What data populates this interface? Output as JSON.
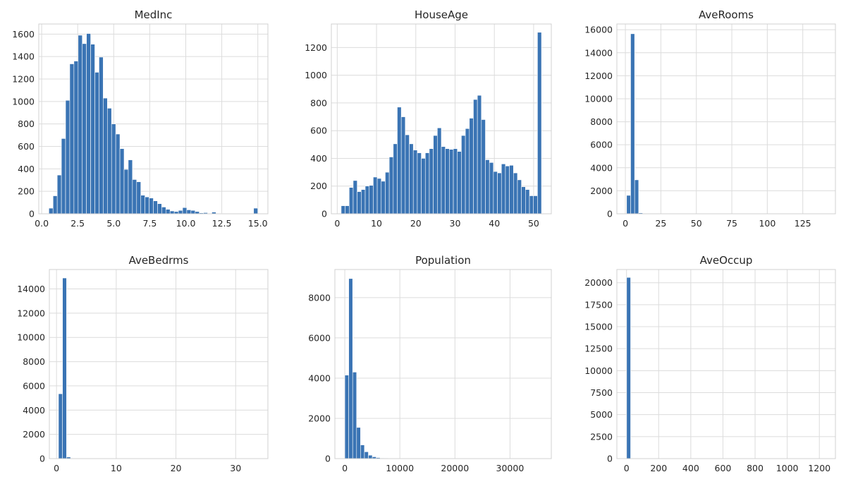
{
  "colors": {
    "bar": "#3a74b4",
    "grid": "#dcdcdc",
    "background": "#ffffff"
  },
  "chart_data": [
    {
      "type": "bar",
      "title": "MedInc",
      "xlabel": "",
      "ylabel": "",
      "xlim": [
        -0.2,
        15.7
      ],
      "ylim": [
        0,
        1690
      ],
      "xticks": [
        0,
        2.5,
        5,
        7.5,
        10,
        12.5,
        15
      ],
      "xtick_labels": [
        "0.0",
        "2.5",
        "5.0",
        "7.5",
        "10.0",
        "12.5",
        "15.0"
      ],
      "yticks": [
        0,
        200,
        400,
        600,
        800,
        1000,
        1200,
        1400,
        1600
      ],
      "yticks_labels": [
        "0",
        "200",
        "400",
        "600",
        "800",
        "1000",
        "1200",
        "1400",
        "1600"
      ],
      "bin_start": 0.5,
      "bin_width": 0.29,
      "values": [
        50,
        160,
        345,
        670,
        1010,
        1335,
        1360,
        1590,
        1515,
        1605,
        1510,
        1260,
        1395,
        1030,
        940,
        800,
        710,
        580,
        395,
        480,
        305,
        285,
        165,
        150,
        140,
        115,
        90,
        60,
        40,
        25,
        20,
        30,
        55,
        35,
        30,
        20,
        8,
        10,
        5,
        15,
        5,
        3,
        2,
        2,
        2,
        2,
        3,
        3,
        2,
        50
      ],
      "grid": true
    },
    {
      "type": "bar",
      "title": "HouseAge",
      "xlabel": "",
      "ylabel": "",
      "xlim": [
        -1.5,
        54.5
      ],
      "ylim": [
        0,
        1370
      ],
      "xticks": [
        0,
        10,
        20,
        30,
        40,
        50
      ],
      "xtick_labels": [
        "0",
        "10",
        "20",
        "30",
        "40",
        "50"
      ],
      "yticks": [
        0,
        200,
        400,
        600,
        800,
        1000,
        1200
      ],
      "yticks_labels": [
        "0",
        "200",
        "400",
        "600",
        "800",
        "1000",
        "1200"
      ],
      "bin_start": 1,
      "bin_width": 1.02,
      "values": [
        58,
        58,
        190,
        240,
        160,
        175,
        200,
        205,
        265,
        255,
        235,
        300,
        410,
        505,
        770,
        700,
        570,
        505,
        460,
        440,
        400,
        440,
        470,
        565,
        620,
        485,
        470,
        465,
        470,
        450,
        565,
        615,
        690,
        825,
        855,
        680,
        390,
        370,
        305,
        295,
        360,
        345,
        350,
        295,
        245,
        195,
        175,
        130,
        130,
        1310
      ],
      "grid": true
    },
    {
      "type": "bar",
      "title": "AveRooms",
      "xlabel": "",
      "ylabel": "",
      "xlim": [
        -6,
        148
      ],
      "ylim": [
        0,
        16500
      ],
      "xticks": [
        0,
        25,
        50,
        75,
        100,
        125
      ],
      "xtick_labels": [
        "0",
        "25",
        "50",
        "75",
        "100",
        "125"
      ],
      "yticks": [
        0,
        2000,
        4000,
        6000,
        8000,
        10000,
        12000,
        14000,
        16000
      ],
      "yticks_labels": [
        "0",
        "2000",
        "4000",
        "6000",
        "8000",
        "10000",
        "12000",
        "14000",
        "16000"
      ],
      "bin_start": 0.85,
      "bin_width": 2.83,
      "values": [
        1600,
        15650,
        2950,
        80,
        20,
        8,
        4,
        3,
        2,
        1,
        0,
        1,
        0,
        0,
        0,
        0,
        0,
        0,
        1,
        0,
        0,
        0,
        0,
        0,
        0,
        0,
        0,
        0,
        0,
        0,
        0,
        0,
        0,
        0,
        0,
        0,
        0,
        0,
        0,
        0,
        0,
        0,
        0,
        0,
        0,
        0,
        0,
        0,
        0,
        1
      ],
      "grid": true
    },
    {
      "type": "bar",
      "title": "AveBedrms",
      "xlabel": "",
      "ylabel": "",
      "xlim": [
        -1.2,
        35.4
      ],
      "ylim": [
        0,
        15600
      ],
      "xticks": [
        0,
        10,
        20,
        30
      ],
      "xtick_labels": [
        "0",
        "10",
        "20",
        "30"
      ],
      "yticks": [
        0,
        2000,
        4000,
        6000,
        8000,
        10000,
        12000,
        14000
      ],
      "yticks_labels": [
        "0",
        "2000",
        "4000",
        "6000",
        "8000",
        "10000",
        "12000",
        "14000"
      ],
      "bin_start": 0.33,
      "bin_width": 0.675,
      "values": [
        5350,
        14900,
        130,
        20,
        8,
        5,
        3,
        2,
        1,
        1,
        1,
        0,
        0,
        0,
        1,
        0,
        0,
        0,
        0,
        0,
        0,
        0,
        0,
        0,
        0,
        0,
        0,
        0,
        0,
        0,
        0,
        0,
        0,
        0,
        0,
        0,
        0,
        0,
        0,
        0,
        0,
        0,
        0,
        0,
        0,
        0,
        0,
        0,
        0,
        1
      ],
      "grid": true
    },
    {
      "type": "bar",
      "title": "Population",
      "xlabel": "",
      "ylabel": "",
      "xlim": [
        -1800,
        37500
      ],
      "ylim": [
        0,
        9400
      ],
      "xticks": [
        0,
        10000,
        20000,
        30000
      ],
      "xtick_labels": [
        "0",
        "10000",
        "20000",
        "30000"
      ],
      "yticks": [
        0,
        2000,
        4000,
        6000,
        8000
      ],
      "yticks_labels": [
        "0",
        "2000",
        "4000",
        "6000",
        "8000"
      ],
      "bin_start": 3,
      "bin_width": 713,
      "values": [
        4150,
        8950,
        4300,
        1550,
        680,
        340,
        170,
        90,
        50,
        30,
        20,
        10,
        8,
        5,
        3,
        2,
        2,
        1,
        1,
        1,
        1,
        0,
        0,
        1,
        0,
        0,
        0,
        0,
        0,
        0,
        0,
        0,
        0,
        0,
        0,
        0,
        0,
        0,
        0,
        0,
        0,
        0,
        0,
        0,
        0,
        0,
        0,
        0,
        0,
        1
      ],
      "grid": true
    },
    {
      "type": "bar",
      "title": "AveOccup",
      "xlabel": "",
      "ylabel": "",
      "xlim": [
        -60,
        1300
      ],
      "ylim": [
        0,
        21500
      ],
      "xticks": [
        0,
        200,
        400,
        600,
        800,
        1000,
        1200
      ],
      "xtick_labels": [
        "0",
        "200",
        "400",
        "600",
        "800",
        "1000",
        "1200"
      ],
      "yticks": [
        0,
        2500,
        5000,
        7500,
        10000,
        12500,
        15000,
        17500,
        20000
      ],
      "yticks_labels": [
        "0",
        "2500",
        "5000",
        "7500",
        "10000",
        "12500",
        "15000",
        "17500",
        "20000"
      ],
      "bin_start": 0.7,
      "bin_width": 24.8,
      "values": [
        20600,
        15,
        5,
        2,
        1,
        1,
        0,
        0,
        0,
        0,
        0,
        0,
        0,
        0,
        0,
        0,
        0,
        0,
        0,
        0,
        0,
        0,
        0,
        0,
        0,
        0,
        0,
        0,
        0,
        0,
        0,
        0,
        0,
        0,
        0,
        0,
        0,
        0,
        0,
        0,
        0,
        0,
        0,
        0,
        0,
        0,
        0,
        0,
        0,
        1
      ],
      "grid": true
    }
  ]
}
